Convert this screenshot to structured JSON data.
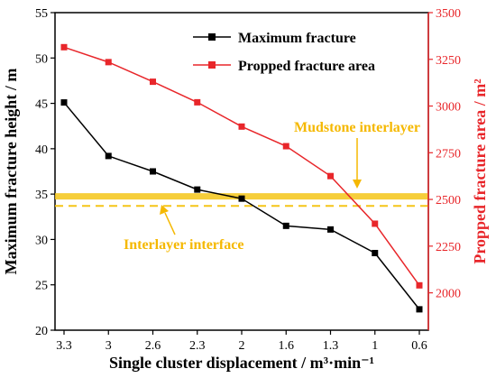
{
  "chart_data": {
    "type": "line",
    "categories": [
      "3.3",
      "3",
      "2.6",
      "2.3",
      "2",
      "1.6",
      "1.3",
      "1",
      "0.6"
    ],
    "xlabel": "Single cluster displacement / m³·min⁻¹",
    "y_left": {
      "label": "Maximum fracture height / m",
      "range": [
        20,
        55
      ],
      "ticks": [
        "20",
        "25",
        "30",
        "35",
        "40",
        "45",
        "50",
        "55"
      ],
      "color": "#000000"
    },
    "y_right": {
      "label": "Propped fracture area / m²",
      "range": [
        1800,
        3500
      ],
      "ticks": [
        "2000",
        "2250",
        "2500",
        "2750",
        "3000",
        "3250",
        "3500"
      ],
      "color": "#e8262a"
    },
    "series": [
      {
        "name": "Maximum  fracture",
        "axis": "left",
        "color": "#000000",
        "values": [
          45.1,
          39.2,
          37.5,
          35.5,
          34.5,
          31.5,
          31.1,
          28.5,
          22.3
        ]
      },
      {
        "name": "Propped fracture area",
        "axis": "right",
        "color": "#e8262a",
        "values": [
          3315,
          3235,
          3130,
          3020,
          2890,
          2785,
          2625,
          2370,
          2040
        ]
      }
    ],
    "bands": [
      {
        "label": "Mudstone interlayer",
        "y_from": 34.4,
        "y_to": 35.1,
        "color": "#f5c518"
      }
    ],
    "lines": [
      {
        "label": "Interlayer interface",
        "y": 33.7,
        "color": "#f5c518",
        "dash": true
      }
    ],
    "annotations": {
      "mudstone": "Mudstone interlayer",
      "interface": "Interlayer interface",
      "accent_color": "#f5b800"
    },
    "legend_position": "top-right",
    "grid": false
  }
}
